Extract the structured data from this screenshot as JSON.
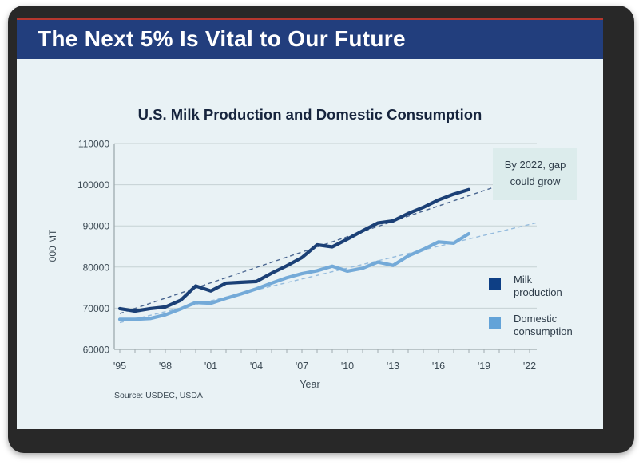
{
  "banner": {
    "title": "The Next 5% Is Vital to Our Future",
    "bg_color": "#223e7d",
    "accent_line_color": "#b5372e"
  },
  "colors": {
    "slide_bg": "#e9f2f5",
    "frame": "#282828",
    "grid": "#c6d1d4",
    "axis": "#9faaae",
    "tick_text": "#3c4a54",
    "annotation_bg": "#dcecec"
  },
  "chart_data": {
    "type": "line",
    "title": "U.S. Milk Production and Domestic Consumption",
    "xlabel": "Year",
    "ylabel": "000 MT",
    "ylim": [
      60000,
      110000
    ],
    "yticks": [
      60000,
      70000,
      80000,
      90000,
      100000,
      110000
    ],
    "x_range": [
      1995,
      2022
    ],
    "xtick_years": [
      1995,
      1998,
      2001,
      2004,
      2007,
      2010,
      2013,
      2016,
      2019,
      2022
    ],
    "xtick_labels": [
      "'95",
      "'98",
      "'01",
      "'04",
      "'07",
      "'10",
      "'13",
      "'16",
      "'19",
      "'22"
    ],
    "grid": true,
    "years": [
      1995,
      1996,
      1997,
      1998,
      1999,
      2000,
      2001,
      2002,
      2003,
      2004,
      2005,
      2006,
      2007,
      2008,
      2009,
      2010,
      2011,
      2012,
      2013,
      2014,
      2015,
      2016,
      2017,
      2018
    ],
    "series": [
      {
        "name": "Milk production",
        "color": "#1b4076",
        "values": [
          69900,
          69300,
          69900,
          70300,
          71900,
          75400,
          74200,
          76100,
          76300,
          76500,
          78500,
          80300,
          82300,
          85400,
          84900,
          86800,
          88800,
          90700,
          91200,
          93000,
          94500,
          96300,
          97700,
          98800
        ]
      },
      {
        "name": "Domestic consumption",
        "color": "#74aad8",
        "values": [
          67300,
          67300,
          67500,
          68400,
          69800,
          71400,
          71200,
          72400,
          73500,
          74700,
          76100,
          77400,
          78400,
          79100,
          80200,
          79000,
          79700,
          81200,
          80400,
          82700,
          84300,
          86100,
          85800,
          88100
        ]
      }
    ],
    "trend_lines": [
      {
        "name": "Milk production trend",
        "color": "#4a6690",
        "x": [
          1995,
          2022
        ],
        "values": [
          68700,
          102300
        ]
      },
      {
        "name": "Domestic consumption trend",
        "color": "#96bcdd",
        "x": [
          1995,
          2022.4
        ],
        "values": [
          66500,
          90700
        ]
      }
    ],
    "annotation": {
      "text_lines": [
        "By 2022, gap",
        "could grow"
      ]
    },
    "legend": [
      {
        "label_lines": [
          "Milk",
          "production"
        ],
        "color": "#0e3f85"
      },
      {
        "label_lines": [
          "Domestic",
          "consumption"
        ],
        "color": "#63a3d8"
      }
    ],
    "source": "Source: USDEC, USDA",
    "legend_position": "right-inside",
    "axis_note": "solid lines are actual 1995-2018; dashed lines are trends extended to 2022"
  }
}
